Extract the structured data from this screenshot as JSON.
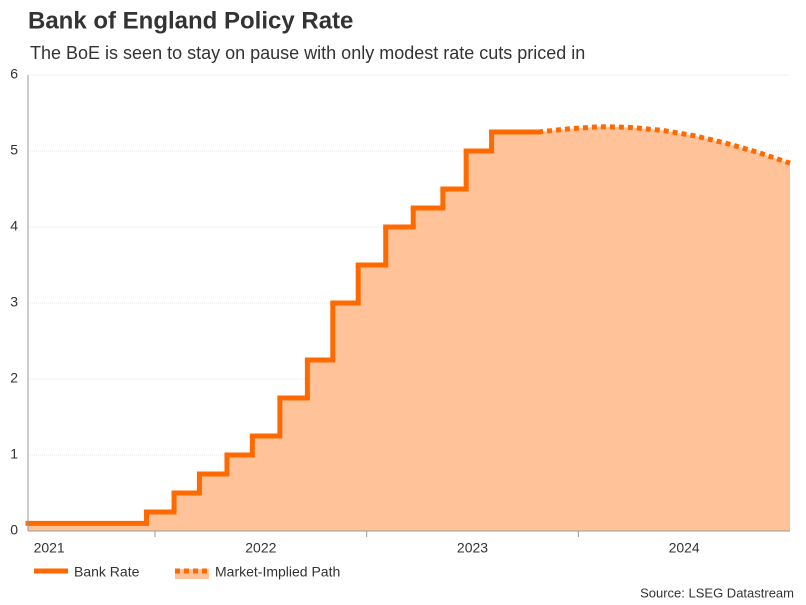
{
  "chart_data": {
    "type": "step-area",
    "title": "Bank of England Policy Rate",
    "subtitle": "The BoE is seen to stay on pause with only modest rate cuts priced in",
    "source": "Source: LSEG Datastream",
    "series": [
      {
        "name": "Bank Rate",
        "color": "#ff6a00",
        "style": "solid",
        "x": [
          2021.4,
          2021.96,
          2022.09,
          2022.21,
          2022.34,
          2022.46,
          2022.59,
          2022.72,
          2022.84,
          2022.96,
          2023.09,
          2023.22,
          2023.36,
          2023.47,
          2023.59
        ],
        "values": [
          0.1,
          0.25,
          0.5,
          0.75,
          1,
          1.25,
          1.75,
          2.25,
          3,
          3.5,
          4,
          4.25,
          4.5,
          5,
          5.25
        ]
      },
      {
        "name": "Market-Implied Path",
        "color": "#ff6a00",
        "style": "dotted",
        "x": [
          2023.81,
          2023.95,
          2024.1,
          2024.25,
          2024.4,
          2024.55,
          2024.7,
          2024.85,
          2025.0
        ],
        "values": [
          5.25,
          5.29,
          5.32,
          5.31,
          5.27,
          5.2,
          5.1,
          4.98,
          4.84
        ]
      }
    ],
    "area_color": "#ffc299",
    "xlim": [
      2021.4,
      2025.0
    ],
    "xticks": [
      {
        "value": 2021.5,
        "label": "2021"
      },
      {
        "value": 2022.5,
        "label": "2022"
      },
      {
        "value": 2023.5,
        "label": "2023"
      },
      {
        "value": 2024.5,
        "label": "2024"
      }
    ],
    "xtick_marks": [
      2022,
      2023,
      2024
    ],
    "ylim": [
      0,
      6
    ],
    "yticks": [
      0,
      1,
      2,
      3,
      4,
      5,
      6
    ],
    "grid": true
  }
}
